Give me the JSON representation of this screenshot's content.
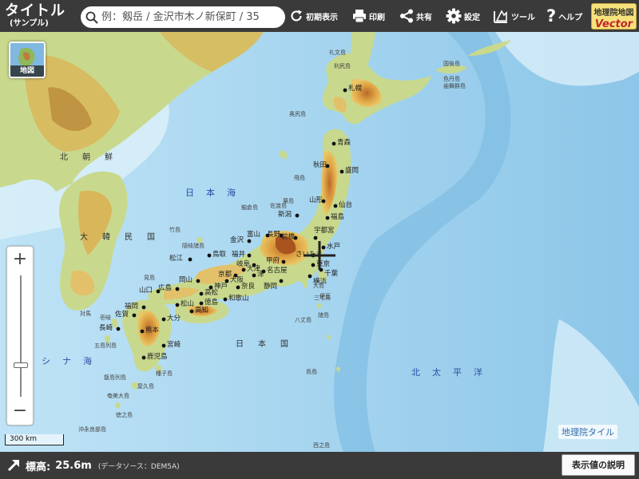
{
  "header": {
    "title": "タイトル",
    "subtitle": "(サンプル)",
    "search_placeholder": "例：剱岳 / 金沢市木ノ新保町 / 35",
    "buttons": {
      "home": "初期表示",
      "print": "印刷",
      "share": "共有",
      "settings": "設定",
      "tools": "ツール",
      "help": "ヘルプ"
    },
    "logo_top": "地理院地図",
    "logo_bottom": "Vector"
  },
  "map": {
    "basemap_label": "地図",
    "zoom_in": "+",
    "zoom_out": "−",
    "zoom_level_fraction": 0.74,
    "scale_label": "300 km",
    "attribution": "地理院タイル",
    "seas": [
      {
        "key": "japan_sea",
        "text": "日　本　海"
      },
      {
        "key": "pacific",
        "text": "北　太　平　洋"
      },
      {
        "key": "east_china",
        "text": "シ　ナ　海"
      }
    ],
    "regions": [
      {
        "key": "north_korea",
        "text": "北　朝　鮮"
      },
      {
        "key": "south_korea",
        "text": "大　韓　民　国"
      },
      {
        "key": "japan",
        "text": "日　本　国"
      }
    ],
    "cities": [
      "札幌",
      "青森",
      "秋田",
      "盛岡",
      "山形",
      "仙台",
      "福島",
      "新潟",
      "宇都宮",
      "水戸",
      "前橋",
      "長野",
      "富山",
      "金沢",
      "福井",
      "甲府",
      "さいたま",
      "東京",
      "千葉",
      "横浜",
      "岐阜",
      "名古屋",
      "静岡",
      "津",
      "京都",
      "大津",
      "大阪",
      "神戸",
      "奈良",
      "和歌山",
      "鳥取",
      "松江",
      "岡山",
      "広島",
      "山口",
      "徳島",
      "高松",
      "松山",
      "高知",
      "福岡",
      "佐賀",
      "長崎",
      "熊本",
      "大分",
      "宮崎",
      "鹿児島"
    ],
    "islands": [
      "礼文島",
      "利尻島",
      "奥尻島",
      "飛島",
      "粟島",
      "佐渡島",
      "舳倉島",
      "隠岐諸島",
      "見島",
      "竹島",
      "対馬",
      "壱岐",
      "五島列島",
      "甑島列島",
      "種子島",
      "屋久島",
      "奄美大島",
      "徳之島",
      "沖永良部島",
      "大島",
      "三宅島",
      "八丈島",
      "鳥島",
      "西之島",
      "伊豆",
      "諸島",
      "国後島",
      "色丹島",
      "歯舞群島"
    ]
  },
  "footer": {
    "elevation_label": "標高:",
    "elevation_value": "25.6m",
    "source": "(データソース：DEM5A)",
    "explain_button": "表示値の説明"
  }
}
